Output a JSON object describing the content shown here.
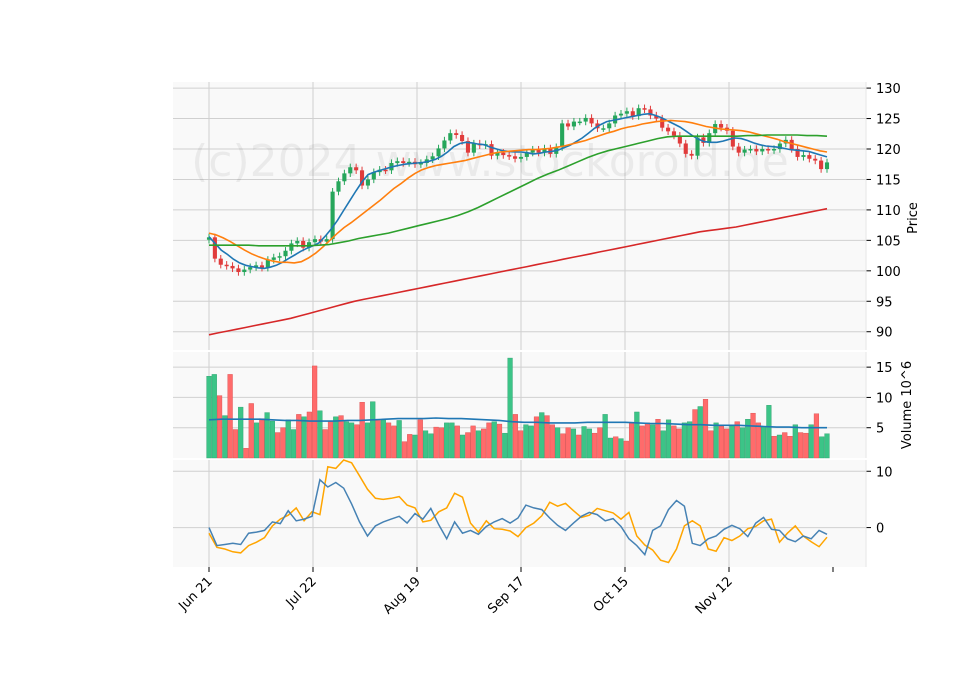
{
  "chart_data": {
    "type": "candlestick",
    "watermark": "(c)2024 www.stockoroid.de",
    "x_tick_labels": [
      "Jun 21",
      "Jul 22",
      "Aug 19",
      "Sep 17",
      "Oct 15",
      "Nov 12"
    ],
    "price_panel": {
      "ylabel": "Price",
      "ylim": [
        87,
        131
      ],
      "yticks": [
        90,
        95,
        100,
        105,
        110,
        115,
        120,
        125,
        130
      ],
      "close": [
        105.5,
        102.0,
        101.0,
        100.8,
        100.4,
        99.8,
        100.2,
        100.6,
        100.9,
        100.5,
        101.8,
        102.2,
        102.4,
        103.3,
        104.5,
        104.9,
        103.8,
        104.7,
        105.2,
        104.8,
        105.2,
        113.0,
        114.7,
        116.0,
        117.0,
        116.5,
        114.0,
        115.0,
        116.2,
        116.6,
        116.5,
        117.7,
        118.0,
        117.7,
        117.9,
        117.5,
        117.7,
        118.3,
        118.8,
        120.1,
        121.4,
        122.6,
        122.3,
        121.3,
        119.4,
        120.9,
        120.6,
        120.8,
        118.9,
        119.4,
        119.0,
        118.8,
        118.4,
        118.7,
        119.4,
        119.9,
        119.4,
        120.1,
        119.2,
        120.3,
        124.2,
        123.7,
        124.5,
        124.5,
        125.1,
        124.2,
        123.4,
        123.4,
        124.2,
        125.5,
        125.8,
        126.2,
        125.4,
        126.7,
        126.5,
        125.5,
        125.0,
        123.5,
        122.9,
        122.2,
        120.9,
        119.2,
        118.9,
        121.9,
        121.0,
        122.6,
        124.1,
        123.5,
        123.0,
        120.4,
        119.4,
        119.9,
        120.0,
        119.6,
        120.0,
        119.8,
        120.0,
        120.9,
        121.5,
        120.0,
        118.7,
        119.0,
        118.4,
        118.1,
        116.7,
        117.8
      ],
      "series": [
        {
          "color": "#1f77b4",
          "values": [
            105.6,
            104.5,
            103.4,
            102.7,
            101.9,
            101.3,
            100.9,
            100.7,
            100.5,
            100.4,
            100.6,
            100.9,
            101.4,
            102.0,
            102.6,
            103.2,
            103.7,
            104.1,
            104.6,
            105.7,
            106.9,
            108.3,
            109.9,
            111.5,
            113.1,
            114.6,
            115.8,
            116.2,
            116.5,
            116.8,
            117.1,
            117.3,
            117.5,
            117.6,
            117.7,
            117.8,
            118.0,
            118.3,
            118.8,
            119.5,
            120.4,
            120.9,
            121.1,
            121.0,
            120.8,
            120.7,
            120.3,
            120.0,
            119.7,
            119.6,
            119.5,
            119.5,
            119.4,
            119.2,
            119.3,
            119.5,
            119.6,
            119.8,
            120.2,
            120.6,
            121.2,
            121.8,
            122.6,
            123.4,
            124.0,
            124.5,
            124.7,
            124.9,
            125.1,
            125.3,
            125.5,
            125.7,
            125.8,
            125.5,
            125.1,
            124.6,
            124.1,
            123.6,
            122.9,
            122.2,
            121.6,
            121.2,
            121.1,
            121.1,
            121.3,
            121.6,
            121.8,
            121.7,
            121.4,
            121.0,
            120.7,
            120.5,
            120.4,
            120.3,
            120.1,
            119.9,
            119.8,
            119.7,
            119.6,
            119.3,
            119.0,
            118.7
          ]
        },
        {
          "color": "#ff7f0e",
          "values": [
            106.2,
            105.9,
            105.4,
            104.8,
            104.1,
            103.4,
            102.8,
            102.3,
            101.9,
            101.6,
            101.4,
            101.4,
            101.3,
            101.5,
            102.1,
            102.9,
            103.9,
            105.0,
            106.1,
            107.1,
            107.9,
            108.8,
            109.7,
            110.6,
            111.5,
            112.5,
            113.5,
            114.3,
            115.2,
            116.0,
            116.6,
            117.0,
            117.3,
            117.5,
            117.7,
            117.9,
            118.1,
            118.4,
            118.7,
            119.0,
            119.3,
            119.5,
            119.6,
            119.7,
            119.8,
            119.9,
            119.9,
            120.0,
            120.1,
            120.3,
            120.5,
            120.8,
            121.1,
            121.4,
            121.8,
            122.2,
            122.6,
            122.9,
            123.3,
            123.6,
            123.8,
            124.1,
            124.3,
            124.5,
            124.6,
            124.7,
            124.6,
            124.5,
            124.3,
            124.0,
            123.7,
            123.5,
            123.3,
            123.2,
            123.1,
            123.0,
            122.8,
            122.5,
            122.2,
            121.9,
            121.6,
            121.2,
            120.9,
            120.6,
            120.3,
            120.0,
            119.7,
            119.5
          ]
        },
        {
          "color": "#2ca02c",
          "values": [
            104.2,
            104.2,
            104.2,
            104.2,
            104.2,
            104.1,
            104.1,
            104.1,
            104.1,
            104.1,
            104.1,
            104.2,
            104.3,
            104.6,
            104.9,
            105.3,
            105.6,
            105.9,
            106.2,
            106.6,
            107.0,
            107.4,
            107.8,
            108.2,
            108.6,
            109.1,
            109.7,
            110.4,
            111.2,
            112.0,
            112.8,
            113.6,
            114.4,
            115.2,
            115.9,
            116.5,
            117.2,
            117.9,
            118.6,
            119.2,
            119.7,
            120.1,
            120.5,
            120.9,
            121.3,
            121.7,
            122.0,
            122.1,
            122.1,
            122.1,
            122.1,
            122.1,
            122.1,
            122.1,
            122.2,
            122.2,
            122.3,
            122.3,
            122.3,
            122.3,
            122.2,
            122.2,
            122.1
          ]
        },
        {
          "color": "#d62728",
          "values": [
            89.5,
            89.8,
            90.1,
            90.4,
            90.7,
            91.0,
            91.3,
            91.6,
            91.9,
            92.2,
            92.6,
            93.0,
            93.4,
            93.8,
            94.2,
            94.6,
            95.0,
            95.3,
            95.6,
            95.9,
            96.2,
            96.5,
            96.8,
            97.1,
            97.4,
            97.7,
            98.0,
            98.3,
            98.6,
            98.9,
            99.2,
            99.5,
            99.8,
            100.1,
            100.4,
            100.7,
            101.0,
            101.3,
            101.6,
            101.9,
            102.2,
            102.5,
            102.8,
            103.1,
            103.4,
            103.7,
            104.0,
            104.3,
            104.6,
            104.9,
            105.2,
            105.5,
            105.8,
            106.1,
            106.4,
            106.6,
            106.8,
            107.0,
            107.2,
            107.5,
            107.8,
            108.1,
            108.4,
            108.7,
            109.0,
            109.3,
            109.6,
            109.9,
            110.2
          ]
        }
      ]
    },
    "volume_panel": {
      "ylabel": "Volume  10^6",
      "ylim": [
        0,
        17.5
      ],
      "yticks": [
        5,
        10,
        15
      ],
      "volumes": [
        13.5,
        13.8,
        10.3,
        7.0,
        13.8,
        4.7,
        8.4,
        1.6,
        9.0,
        5.8,
        6.5,
        7.5,
        6.1,
        4.2,
        5.0,
        6.3,
        4.7,
        7.2,
        6.8,
        7.6,
        15.2,
        7.8,
        4.7,
        6.1,
        6.8,
        7.0,
        6.0,
        5.8,
        5.5,
        9.2,
        5.8,
        9.3,
        6.2,
        6.3,
        5.8,
        5.3,
        6.2,
        2.7,
        3.9,
        3.8,
        6.3,
        4.5,
        4.0,
        5.1,
        5.0,
        5.8,
        5.8,
        5.3,
        3.8,
        4.2,
        5.3,
        4.5,
        4.8,
        5.8,
        6.0,
        5.6,
        4.1,
        16.5,
        7.2,
        4.5,
        5.5,
        5.3,
        6.8,
        7.5,
        7.0,
        5.5,
        5.0,
        4.0,
        5.0,
        4.8,
        3.8,
        5.2,
        4.8,
        4.1,
        5.0,
        7.2,
        3.3,
        3.5,
        3.2,
        2.8,
        5.8,
        7.6,
        5.3,
        5.8,
        5.5,
        6.4,
        4.5,
        6.3,
        5.3,
        4.8,
        5.8,
        6.0,
        8.0,
        8.5,
        9.7,
        4.5,
        5.8,
        5.3,
        4.8,
        5.5,
        6.0,
        5.0,
        6.4,
        7.4,
        5.8,
        5.2,
        8.7,
        3.6,
        3.8,
        4.2,
        3.6,
        5.5,
        4.2,
        4.1,
        5.5,
        7.3,
        3.5,
        4.0
      ],
      "avg_volume": {
        "color": "#1f77b4",
        "values": [
          6.3,
          6.4,
          6.4,
          6.4,
          6.4,
          6.3,
          6.2,
          6.2,
          6.1,
          6.1,
          6.1,
          6.2,
          6.2,
          6.3,
          6.4,
          6.5,
          6.5,
          6.5,
          6.6,
          6.5,
          6.5,
          6.4,
          6.3,
          6.2,
          6.0,
          5.9,
          5.9,
          5.8,
          5.8,
          5.8,
          5.9,
          5.9,
          5.9,
          5.9,
          5.8,
          5.7,
          5.7,
          5.6,
          5.5,
          5.5,
          5.4,
          5.4,
          5.4,
          5.3,
          5.2,
          5.1,
          5.1,
          5.0,
          5.0,
          5.0
        ]
      }
    },
    "indicator_panel": {
      "ylim": [
        -7,
        12
      ],
      "yticks": [
        0,
        10
      ],
      "series": [
        {
          "color": "#ffa500",
          "values": [
            -1.0,
            -3.5,
            -3.8,
            -4.3,
            -4.5,
            -3.2,
            -2.6,
            -1.8,
            0.3,
            1.5,
            2.2,
            3.5,
            1.2,
            2.8,
            2.3,
            10.8,
            10.5,
            12.0,
            11.5,
            9.2,
            6.8,
            5.2,
            5.0,
            5.2,
            5.5,
            4.0,
            3.5,
            1.0,
            1.3,
            2.8,
            3.5,
            6.1,
            5.4,
            0.8,
            -0.8,
            1.2,
            -0.2,
            -0.3,
            -0.6,
            -1.6,
            0.0,
            0.8,
            2.1,
            4.5,
            3.8,
            4.3,
            3.0,
            1.8,
            2.2,
            3.4,
            3.0,
            2.6,
            1.5,
            2.7,
            -1.5,
            -3.1,
            -4.0,
            -5.8,
            -6.2,
            -3.8,
            0.3,
            1.2,
            0.3,
            -3.8,
            -4.2,
            -1.8,
            -2.3,
            -1.5,
            -0.2,
            0.2,
            1.2,
            1.5,
            -2.6,
            -1.0,
            0.3,
            -1.5,
            -2.5,
            -3.4,
            -1.7
          ]
        },
        {
          "color": "#4682b4",
          "values": [
            0.0,
            -3.2,
            -3.0,
            -2.8,
            -3.0,
            -1.0,
            -0.8,
            -0.5,
            1.0,
            0.7,
            3.0,
            1.2,
            1.5,
            2.0,
            8.5,
            7.2,
            8.0,
            7.0,
            4.2,
            1.0,
            -1.5,
            0.3,
            1.0,
            1.5,
            2.0,
            0.8,
            2.5,
            1.5,
            3.4,
            0.5,
            -2.0,
            1.0,
            -1.0,
            -0.5,
            -1.2,
            0.2,
            1.0,
            1.6,
            0.8,
            1.7,
            4.0,
            3.5,
            3.2,
            1.7,
            0.4,
            -0.5,
            0.8,
            2.0,
            2.7,
            2.3,
            1.2,
            1.6,
            0.2,
            -2.0,
            -3.2,
            -4.8,
            -0.5,
            0.3,
            3.2,
            4.8,
            3.8,
            -2.8,
            -3.2,
            -2.0,
            -1.5,
            -0.3,
            0.4,
            -0.2,
            -1.6,
            0.8,
            1.8,
            -0.3,
            -0.5,
            -2.0,
            -2.5,
            -1.5,
            -2.0,
            -0.5,
            -1.2
          ]
        }
      ]
    }
  }
}
